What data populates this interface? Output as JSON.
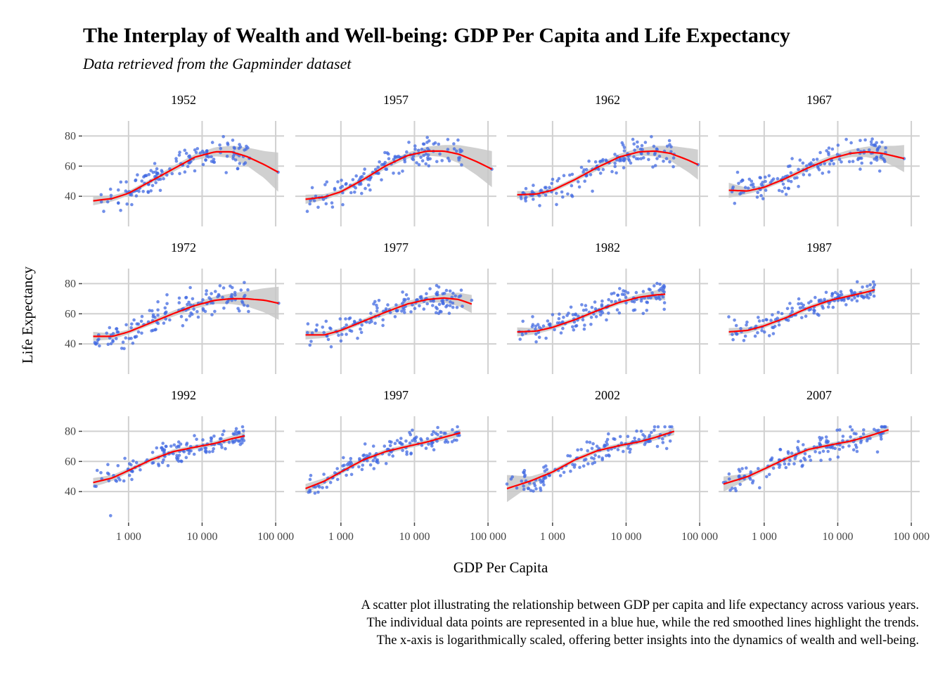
{
  "chart_data": {
    "type": "scatter",
    "title": "The Interplay of Wealth and Well-being: GDP Per Capita and Life Expectancy",
    "subtitle": "Data retrieved from the Gapminder dataset",
    "xlabel": "GDP Per Capita",
    "ylabel": "Life Expectancy",
    "caption_lines": [
      "A scatter plot illustrating the relationship between GDP per capita and life expectancy across various years.",
      "The individual data points are represented in a blue hue, while the red smoothed lines highlight the trends.",
      "The x-axis is logarithmically scaled, offering better insights into the dynamics of wealth and well-being."
    ],
    "x_scale": "log10",
    "xlim": [
      240,
      130000
    ],
    "ylim": [
      20,
      90
    ],
    "x_ticks": [
      1000,
      10000,
      100000
    ],
    "x_tick_labels": [
      "1 000",
      "10 000",
      "100 000"
    ],
    "y_ticks": [
      40,
      60,
      80
    ],
    "y_tick_labels": [
      "40",
      "60",
      "80"
    ],
    "grid": true,
    "facet_layout": {
      "rows": 3,
      "cols": 4
    },
    "colors": {
      "points": "#4169e1",
      "smooth": "#ff0000",
      "band": "#c8c8c8",
      "grid": "#d0d0d0"
    },
    "panels": [
      {
        "year": "1952",
        "gdp_range": [
          330,
          108000
        ],
        "smooth_x": [
          330,
          600,
          1000,
          2000,
          4000,
          8000,
          15000,
          25000,
          40000,
          70000,
          108000
        ],
        "smooth_y": [
          37,
          38.5,
          42,
          50,
          58,
          66,
          69.5,
          69.5,
          66.5,
          61,
          56
        ],
        "band_halfwidth": [
          3,
          2,
          1.5,
          1.5,
          2,
          2,
          3,
          4,
          6,
          9,
          13
        ],
        "point_seed": 1952,
        "point_count": 142,
        "point_spread": 7,
        "extra_points": [
          [
            108000,
            56
          ]
        ]
      },
      {
        "year": "1957",
        "gdp_range": [
          330,
          113000
        ],
        "smooth_x": [
          330,
          600,
          1000,
          2000,
          4000,
          8000,
          15000,
          25000,
          40000,
          70000,
          113000
        ],
        "smooth_y": [
          38,
          39.5,
          43,
          51,
          60,
          67,
          70,
          70,
          68,
          63,
          58
        ],
        "band_halfwidth": [
          3,
          2,
          1.5,
          1.5,
          2,
          2,
          3,
          4,
          6,
          9,
          12
        ],
        "point_seed": 1957,
        "point_count": 142,
        "point_spread": 7,
        "extra_points": [
          [
            113000,
            58
          ]
        ]
      },
      {
        "year": "1962",
        "gdp_range": [
          330,
          95000
        ],
        "smooth_x": [
          330,
          600,
          1000,
          2000,
          4000,
          8000,
          15000,
          25000,
          40000,
          70000,
          95000
        ],
        "smooth_y": [
          41,
          41.5,
          44,
          51,
          59,
          66,
          69.5,
          70,
          68.5,
          64,
          61
        ],
        "band_halfwidth": [
          2.5,
          2,
          1.5,
          1.5,
          2,
          2,
          2.5,
          3.5,
          5,
          8,
          10
        ],
        "point_seed": 1962,
        "point_count": 142,
        "point_spread": 7,
        "extra_points": [
          [
            95000,
            61
          ]
        ]
      },
      {
        "year": "1967",
        "gdp_range": [
          330,
          80000
        ],
        "smooth_x": [
          330,
          600,
          1000,
          2000,
          4000,
          8000,
          15000,
          25000,
          40000,
          60000,
          80000
        ],
        "smooth_y": [
          44,
          43.5,
          46,
          52,
          59,
          65,
          68.5,
          69.5,
          68.5,
          66.5,
          65
        ],
        "band_halfwidth": [
          5,
          2,
          1.5,
          1.5,
          2,
          2,
          2.5,
          3.5,
          5,
          7,
          9
        ],
        "point_seed": 1967,
        "point_count": 142,
        "point_spread": 7,
        "extra_points": [
          [
            80000,
            65
          ]
        ]
      },
      {
        "year": "1972",
        "gdp_range": [
          330,
          110000
        ],
        "smooth_x": [
          330,
          600,
          1000,
          2000,
          4000,
          8000,
          15000,
          25000,
          40000,
          70000,
          110000
        ],
        "smooth_y": [
          45,
          45,
          48,
          54,
          60,
          65.5,
          69,
          70,
          70,
          69,
          67
        ],
        "band_halfwidth": [
          3,
          2,
          1.5,
          1.5,
          2,
          2,
          2.5,
          3.5,
          5,
          8,
          11
        ],
        "point_seed": 1972,
        "point_count": 142,
        "point_spread": 7,
        "extra_points": [
          [
            110000,
            67
          ]
        ]
      },
      {
        "year": "1977",
        "gdp_range": [
          330,
          60000
        ],
        "smooth_x": [
          330,
          600,
          1000,
          2000,
          4000,
          8000,
          15000,
          25000,
          40000,
          60000
        ],
        "smooth_y": [
          46,
          46,
          49,
          55,
          61,
          66.5,
          69.5,
          70.5,
          69.5,
          66.5
        ],
        "band_halfwidth": [
          3,
          2,
          1.5,
          1.5,
          2,
          2,
          2,
          3,
          4.5,
          6
        ],
        "point_seed": 1977,
        "point_count": 142,
        "point_spread": 6.5,
        "extra_points": [
          [
            60000,
            69
          ]
        ]
      },
      {
        "year": "1982",
        "gdp_range": [
          330,
          34000
        ],
        "smooth_x": [
          330,
          600,
          1000,
          2000,
          4000,
          8000,
          15000,
          25000,
          34000
        ],
        "smooth_y": [
          48,
          48.5,
          51,
          56,
          62,
          67.5,
          71,
          72.5,
          73
        ],
        "band_halfwidth": [
          3,
          2,
          1.5,
          1.5,
          1.5,
          1.5,
          2,
          3,
          4
        ],
        "point_seed": 1982,
        "point_count": 142,
        "point_spread": 6,
        "extra_points": [
          [
            33000,
            63
          ]
        ]
      },
      {
        "year": "1987",
        "gdp_range": [
          330,
          32000
        ],
        "smooth_x": [
          330,
          600,
          1000,
          2000,
          4000,
          8000,
          15000,
          25000,
          32000
        ],
        "smooth_y": [
          48,
          49,
          52,
          57.5,
          64,
          69,
          72,
          74.5,
          76
        ],
        "band_halfwidth": [
          2.5,
          2,
          1.5,
          1.5,
          1.5,
          1.5,
          1.5,
          2,
          2.5
        ],
        "point_seed": 1987,
        "point_count": 142,
        "point_spread": 5.5,
        "extra_points": [
          [
            330,
            58
          ]
        ]
      },
      {
        "year": "1992",
        "gdp_range": [
          330,
          38000
        ],
        "smooth_x": [
          330,
          600,
          1000,
          2000,
          4000,
          8000,
          15000,
          25000,
          38000
        ],
        "smooth_y": [
          46,
          49,
          54,
          61,
          66.5,
          69.5,
          72,
          75,
          77
        ],
        "band_halfwidth": [
          3,
          2,
          1.5,
          1.5,
          1.5,
          1.5,
          1.5,
          2,
          2.5
        ],
        "point_seed": 1992,
        "point_count": 142,
        "point_spread": 5.5,
        "extra_points": [
          [
            570,
            24
          ]
        ]
      },
      {
        "year": "1997",
        "gdp_range": [
          330,
          42000
        ],
        "smooth_x": [
          330,
          600,
          1000,
          2000,
          4000,
          8000,
          15000,
          25000,
          42000
        ],
        "smooth_y": [
          42,
          47,
          53,
          61,
          66.5,
          70,
          73,
          76,
          79
        ],
        "band_halfwidth": [
          3,
          2,
          1.5,
          1.5,
          1.5,
          1.5,
          1.5,
          2,
          2.5
        ],
        "point_seed": 1997,
        "point_count": 142,
        "point_spread": 5.5,
        "extra_points": []
      },
      {
        "year": "2002",
        "gdp_range": [
          240,
          45000
        ],
        "smooth_x": [
          240,
          500,
          1000,
          2000,
          4000,
          8000,
          15000,
          25000,
          45000
        ],
        "smooth_y": [
          42,
          47,
          53,
          61,
          67,
          70.5,
          73,
          76,
          80
        ],
        "band_halfwidth": [
          9,
          3,
          1.5,
          1.5,
          1.5,
          1.5,
          1.5,
          2,
          2.5
        ],
        "point_seed": 2002,
        "point_count": 142,
        "point_spread": 6,
        "extra_points": [
          [
            240,
            45
          ]
        ]
      },
      {
        "year": "2007",
        "gdp_range": [
          280,
          49000
        ],
        "smooth_x": [
          280,
          600,
          1000,
          2000,
          4000,
          8000,
          15000,
          25000,
          49000
        ],
        "smooth_y": [
          45,
          50,
          55,
          62,
          68,
          71,
          73.5,
          76.5,
          81
        ],
        "band_halfwidth": [
          5,
          2,
          1.5,
          1.5,
          1.5,
          1.5,
          1.5,
          2,
          2.5
        ],
        "point_seed": 2007,
        "point_count": 142,
        "point_spread": 6,
        "extra_points": [
          [
            280,
            46
          ]
        ]
      }
    ]
  }
}
